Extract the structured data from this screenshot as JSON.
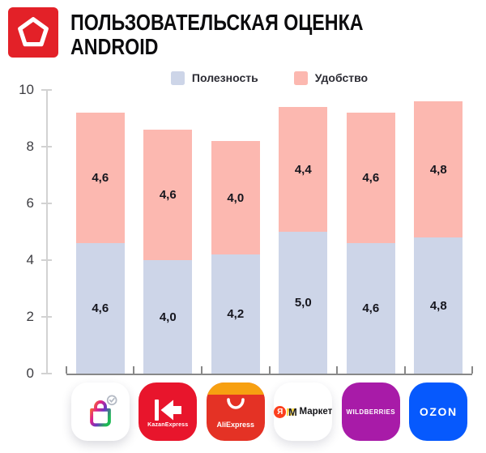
{
  "header": {
    "title_line1": "ПОЛЬЗОВАТЕЛЬСКАЯ ОЦЕНКА",
    "title_line2": "ANDROID",
    "logo_icon": "pentagon-badge-icon",
    "logo_color": "#e32128"
  },
  "legend": {
    "items": [
      {
        "label": "Полезность",
        "color": "#cdd5e8"
      },
      {
        "label": "Удобство",
        "color": "#fcb8b0"
      }
    ]
  },
  "chart_data": {
    "type": "bar",
    "stacked": true,
    "title": "ПОЛЬЗОВАТЕЛЬСКАЯ ОЦЕНКА ANDROID",
    "categories": [
      "shopping-bag-app",
      "KazanExpress",
      "AliExpress",
      "Маркет",
      "WILDBERRIES",
      "OZON"
    ],
    "series": [
      {
        "name": "Полезность",
        "color": "#cdd5e8",
        "values": [
          4.6,
          4.0,
          4.2,
          5.0,
          4.6,
          4.8
        ]
      },
      {
        "name": "Удобство",
        "color": "#fcb8b0",
        "values": [
          4.6,
          4.6,
          4.0,
          4.4,
          4.6,
          4.8
        ]
      }
    ],
    "totals": [
      9.2,
      8.6,
      8.2,
      9.4,
      9.2,
      9.6
    ],
    "value_label_format": "comma-decimal",
    "decimal_separator": ",",
    "xlabel": "",
    "ylabel": "",
    "ylim": [
      0,
      10
    ],
    "yticks": [
      0,
      2,
      4,
      6,
      8,
      10
    ],
    "grid": false,
    "legend_position": "top-center"
  },
  "apps": [
    {
      "label": "",
      "icon": "gradient-shopping-bag-icon",
      "bg": "#ffffff"
    },
    {
      "label": "KazanExpress",
      "icon": "kazanexpress-arrow-icon",
      "bg": "#e8152c"
    },
    {
      "label": "AliExpress",
      "icon": "aliexpress-bag-icon",
      "bg": "#e43225",
      "strip": "#f7a011"
    },
    {
      "label": "Маркет",
      "icon": "yandex-market-icon",
      "bg": "#ffffff",
      "badge": "Я",
      "mark": "М"
    },
    {
      "label": "WILDBERRIES",
      "icon": "wildberries-icon",
      "bg": "#a81ba8"
    },
    {
      "label": "OZON",
      "icon": "ozon-icon",
      "bg": "#0659fd"
    }
  ]
}
